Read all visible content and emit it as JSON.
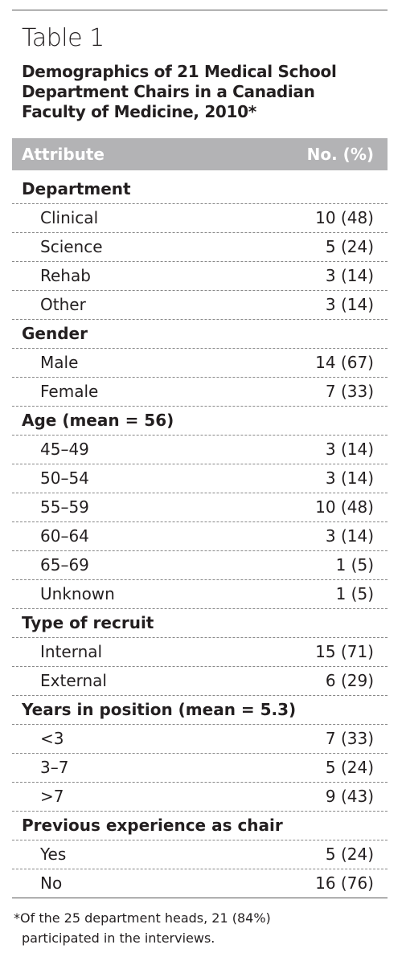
{
  "title": "Table 1",
  "caption": [
    "Demographics of 21 Medical School",
    "Department Chairs in a Canadian",
    "Faculty of Medicine, 2010*"
  ],
  "table": {
    "columns": [
      "Attribute",
      "No. (%)"
    ],
    "groups": [
      {
        "label": "Department",
        "rows": [
          [
            "Clinical",
            "10 (48)"
          ],
          [
            "Science",
            "5 (24)"
          ],
          [
            "Rehab",
            "3 (14)"
          ],
          [
            "Other",
            "3 (14)"
          ]
        ]
      },
      {
        "label": "Gender",
        "rows": [
          [
            "Male",
            "14 (67)"
          ],
          [
            "Female",
            "7 (33)"
          ]
        ]
      },
      {
        "label": "Age (mean = 56)",
        "rows": [
          [
            "45–49",
            "3 (14)"
          ],
          [
            "50–54",
            "3 (14)"
          ],
          [
            "55–59",
            "10 (48)"
          ],
          [
            "60–64",
            "3 (14)"
          ],
          [
            "65–69",
            "1 (5)"
          ],
          [
            "Unknown",
            "1 (5)"
          ]
        ]
      },
      {
        "label": "Type of recruit",
        "rows": [
          [
            "Internal",
            "15 (71)"
          ],
          [
            "External",
            "6 (29)"
          ]
        ]
      },
      {
        "label": "Years in position (mean = 5.3)",
        "rows": [
          [
            "<3",
            "7 (33)"
          ],
          [
            "3–7",
            "5 (24)"
          ],
          [
            ">7",
            "9 (43)"
          ]
        ]
      },
      {
        "label": "Previous experience as chair",
        "rows": [
          [
            "Yes",
            "5 (24)"
          ],
          [
            "No",
            "16 (76)"
          ]
        ]
      }
    ]
  },
  "footnote": [
    "*Of the 25 department heads, 21 (84%)",
    "participated in the interviews."
  ]
}
